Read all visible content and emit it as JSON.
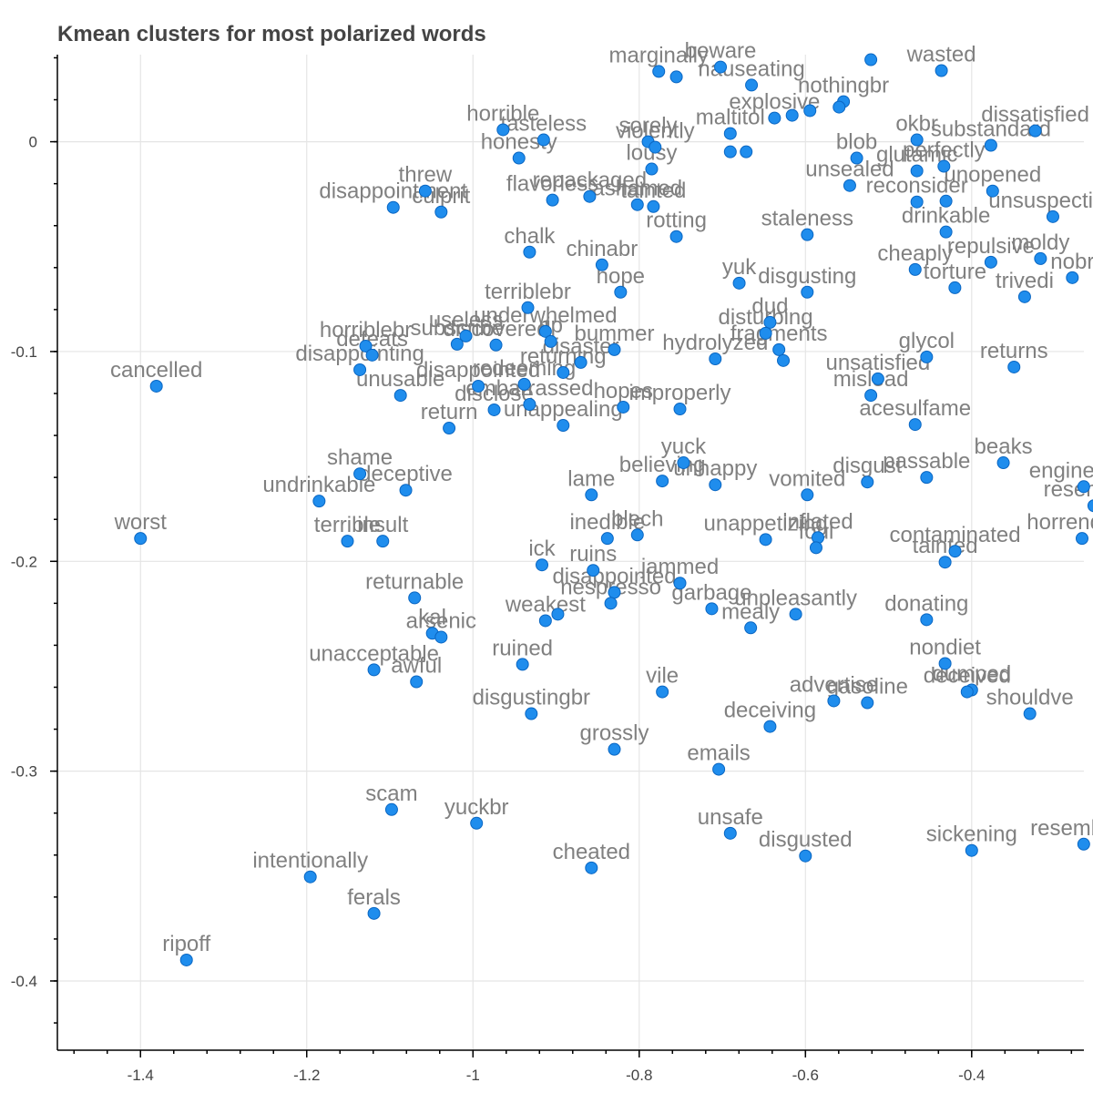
{
  "chart_data": {
    "type": "scatter",
    "title": "Kmean clusters for most polarized words",
    "xlabel": "",
    "ylabel": "",
    "xlim": [
      -1.5,
      -0.265
    ],
    "ylim": [
      -0.433,
      0.0415
    ],
    "grid": true,
    "x_ticks": [
      -1.4,
      -1.2,
      -1,
      -0.8,
      -0.6,
      -0.4
    ],
    "x_tick_labels": [
      "-1.4",
      "-1.2",
      "-1",
      "-0.8",
      "-0.6",
      "-0.4"
    ],
    "y_ticks": [
      0,
      -0.1,
      -0.2,
      -0.3,
      -0.4
    ],
    "y_tick_labels": [
      "0",
      "-0.1",
      "-0.2",
      "-0.3",
      "-0.4"
    ],
    "point_color": "#1f8ded",
    "points": [
      {
        "label": "marginally",
        "x": -0.7765,
        "y": 0.0335
      },
      {
        "label": "",
        "x": -0.7553,
        "y": 0.0309
      },
      {
        "label": "beware",
        "x": -0.7022,
        "y": 0.0356
      },
      {
        "label": "wasted",
        "x": -0.4364,
        "y": 0.0339
      },
      {
        "label": "",
        "x": -0.5213,
        "y": 0.0391
      },
      {
        "label": "nothingbr",
        "x": -0.5542,
        "y": 0.0191
      },
      {
        "label": "nauseating",
        "x": -0.6649,
        "y": 0.027
      },
      {
        "label": "",
        "x": -0.5595,
        "y": 0.0165
      },
      {
        "label": "explosive",
        "x": -0.6372,
        "y": 0.0113
      },
      {
        "label": "",
        "x": -0.616,
        "y": 0.0126
      },
      {
        "label": "",
        "x": -0.5946,
        "y": 0.0148
      },
      {
        "label": "horrible",
        "x": -0.9638,
        "y": 0.0057
      },
      {
        "label": "tasteless",
        "x": -0.915,
        "y": 0.0009
      },
      {
        "label": "honesty",
        "x": -0.9447,
        "y": -0.0078
      },
      {
        "label": "sorely",
        "x": -0.7893,
        "y": -0.0
      },
      {
        "label": "violently",
        "x": -0.7808,
        "y": -0.0026
      },
      {
        "label": "maltitol",
        "x": -0.6904,
        "y": 0.0039
      },
      {
        "label": "",
        "x": -0.6904,
        "y": -0.0048
      },
      {
        "label": "",
        "x": -0.6713,
        "y": -0.0048
      },
      {
        "label": "lousy",
        "x": -0.785,
        "y": -0.013
      },
      {
        "label": "okbr",
        "x": -0.4659,
        "y": 0.0009
      },
      {
        "label": "substandard",
        "x": -0.3769,
        "y": -0.0017
      },
      {
        "label": "dissatisfied",
        "x": -0.3235,
        "y": 0.0052
      },
      {
        "label": "blob",
        "x": -0.5383,
        "y": -0.0078
      },
      {
        "label": "glutamic",
        "x": -0.4659,
        "y": -0.0139
      },
      {
        "label": "perfectly",
        "x": -0.4334,
        "y": -0.0117
      },
      {
        "label": "unsealed",
        "x": -0.5467,
        "y": -0.0209
      },
      {
        "label": "reconsider",
        "x": -0.4659,
        "y": -0.0287
      },
      {
        "label": "",
        "x": -0.4309,
        "y": -0.0283
      },
      {
        "label": "unopened",
        "x": -0.3748,
        "y": -0.0235
      },
      {
        "label": "unsuspecting",
        "x": -0.3023,
        "y": -0.0357
      },
      {
        "label": "threw",
        "x": -1.0574,
        "y": -0.0235
      },
      {
        "label": "disappointment",
        "x": -1.0959,
        "y": -0.0313
      },
      {
        "label": "culprit",
        "x": -1.0383,
        "y": -0.0335
      },
      {
        "label": "flavorless",
        "x": -0.9043,
        "y": -0.0278
      },
      {
        "label": "repackaged",
        "x": -0.8596,
        "y": -0.0261
      },
      {
        "label": "ashamed",
        "x": -0.8022,
        "y": -0.03
      },
      {
        "label": "tainted",
        "x": -0.7829,
        "y": -0.0309
      },
      {
        "label": "rotting",
        "x": -0.7553,
        "y": -0.0452
      },
      {
        "label": "drinkable",
        "x": -0.4309,
        "y": -0.043
      },
      {
        "label": "staleness",
        "x": -0.5978,
        "y": -0.0443
      },
      {
        "label": "chalk",
        "x": -0.9319,
        "y": -0.0526
      },
      {
        "label": "chinabr",
        "x": -0.8448,
        "y": -0.0587
      },
      {
        "label": "hope",
        "x": -0.8224,
        "y": -0.0717
      },
      {
        "label": "repulsive",
        "x": -0.3769,
        "y": -0.0574
      },
      {
        "label": "moldy",
        "x": -0.3172,
        "y": -0.0557
      },
      {
        "label": "cheaply",
        "x": -0.468,
        "y": -0.0609
      },
      {
        "label": "nobr",
        "x": -0.2789,
        "y": -0.0648
      },
      {
        "label": "torture",
        "x": -0.4202,
        "y": -0.0696
      },
      {
        "label": "trivedi",
        "x": -0.3363,
        "y": -0.0739
      },
      {
        "label": "yuk",
        "x": -0.6797,
        "y": -0.0674
      },
      {
        "label": "disgusting",
        "x": -0.5978,
        "y": -0.0717
      },
      {
        "label": "terriblebr",
        "x": -0.934,
        "y": -0.0791
      },
      {
        "label": "underwhelmed",
        "x": -0.9128,
        "y": -0.0904
      },
      {
        "label": "useless",
        "x": -1.0085,
        "y": -0.0926
      },
      {
        "label": "subscribe",
        "x": -1.0191,
        "y": -0.0965
      },
      {
        "label": "discovered",
        "x": -0.9723,
        "y": -0.0969
      },
      {
        "label": "bummer",
        "x": -0.8299,
        "y": -0.0991
      },
      {
        "label": "rip",
        "x": -0.9064,
        "y": -0.0952
      },
      {
        "label": "dud",
        "x": -0.6426,
        "y": -0.0861
      },
      {
        "label": "disturbing",
        "x": -0.6479,
        "y": -0.0913
      },
      {
        "label": "fragments",
        "x": -0.6319,
        "y": -0.0991
      },
      {
        "label": "hydrolyzed",
        "x": -0.7085,
        "y": -0.1035
      },
      {
        "label": "",
        "x": -0.6266,
        "y": -0.1043
      },
      {
        "label": "horriblebr",
        "x": -1.129,
        "y": -0.0974
      },
      {
        "label": "defeats",
        "x": -1.1213,
        "y": -0.1017
      },
      {
        "label": "disappointing",
        "x": -1.1361,
        "y": -0.1087
      },
      {
        "label": "unusable",
        "x": -1.0872,
        "y": -0.1209
      },
      {
        "label": "disappointed",
        "x": -0.9936,
        "y": -0.1165
      },
      {
        "label": "redeeming",
        "x": -0.9383,
        "y": -0.1156
      },
      {
        "label": "disaster",
        "x": -0.8703,
        "y": -0.1052
      },
      {
        "label": "returning",
        "x": -0.8915,
        "y": -0.11
      },
      {
        "label": "embarrassed",
        "x": -0.9319,
        "y": -0.1252
      },
      {
        "label": "return",
        "x": -1.0287,
        "y": -0.1365
      },
      {
        "label": "disclose",
        "x": -0.9745,
        "y": -0.1278
      },
      {
        "label": "unappealing",
        "x": -0.8915,
        "y": -0.1352
      },
      {
        "label": "hopes",
        "x": -0.8192,
        "y": -0.1265
      },
      {
        "label": "improperly",
        "x": -0.751,
        "y": -0.1274
      },
      {
        "label": "glycol",
        "x": -0.4542,
        "y": -0.1026
      },
      {
        "label": "unsatisfied",
        "x": -0.5128,
        "y": -0.113
      },
      {
        "label": "mislead",
        "x": -0.5213,
        "y": -0.1209
      },
      {
        "label": "returns",
        "x": -0.3491,
        "y": -0.1074
      },
      {
        "label": "acesulfame",
        "x": -0.468,
        "y": -0.1348
      },
      {
        "label": "cancelled",
        "x": -1.3809,
        "y": -0.1165
      },
      {
        "label": "yuck",
        "x": -0.7467,
        "y": -0.153
      },
      {
        "label": "believing",
        "x": -0.7722,
        "y": -0.1617
      },
      {
        "label": "unhappy",
        "x": -0.7085,
        "y": -0.1635
      },
      {
        "label": "disgust",
        "x": -0.5255,
        "y": -0.1622
      },
      {
        "label": "passable",
        "x": -0.4542,
        "y": -0.16
      },
      {
        "label": "beaks",
        "x": -0.3619,
        "y": -0.153
      },
      {
        "label": "shame",
        "x": -1.1361,
        "y": -0.1583
      },
      {
        "label": "deceptive",
        "x": -1.0808,
        "y": -0.1661
      },
      {
        "label": "undrinkable",
        "x": -1.1851,
        "y": -0.1713
      },
      {
        "label": "lame",
        "x": -0.8575,
        "y": -0.1683
      },
      {
        "label": "vomited",
        "x": -0.5978,
        "y": -0.1683
      },
      {
        "label": "engineered",
        "x": -0.2652,
        "y": -0.1644
      },
      {
        "label": "resembles",
        "x": -0.253,
        "y": -0.1735
      },
      {
        "label": "worst",
        "x": -1.4,
        "y": -0.1891
      },
      {
        "label": "terrible",
        "x": -1.151,
        "y": -0.1904
      },
      {
        "label": "insult",
        "x": -1.1085,
        "y": -0.1904
      },
      {
        "label": "inedible",
        "x": -0.8383,
        "y": -0.1891
      },
      {
        "label": "blech",
        "x": -0.8022,
        "y": -0.1874
      },
      {
        "label": "unappetizing",
        "x": -0.6479,
        "y": -0.1896
      },
      {
        "label": "inflated",
        "x": -0.585,
        "y": -0.1887
      },
      {
        "label": "foul",
        "x": -0.5872,
        "y": -0.1935
      },
      {
        "label": "contaminated",
        "x": -0.42,
        "y": -0.1952
      },
      {
        "label": "tainted",
        "x": -0.432,
        "y": -0.2004
      },
      {
        "label": "horrendous",
        "x": -0.2672,
        "y": -0.1891
      },
      {
        "label": "ick",
        "x": -0.917,
        "y": -0.2017
      },
      {
        "label": "ruins",
        "x": -0.8554,
        "y": -0.2043
      },
      {
        "label": "jammed",
        "x": -0.751,
        "y": -0.2104
      },
      {
        "label": "returnable",
        "x": -1.0702,
        "y": -0.2174
      },
      {
        "label": "disappointed",
        "x": -0.8299,
        "y": -0.2148
      },
      {
        "label": "nespresso",
        "x": -0.8342,
        "y": -0.22
      },
      {
        "label": "weakest",
        "x": -0.9128,
        "y": -0.2283
      },
      {
        "label": "",
        "x": -0.8979,
        "y": -0.2252
      },
      {
        "label": "garbage",
        "x": -0.7127,
        "y": -0.2226
      },
      {
        "label": "unpleasantly",
        "x": -0.6117,
        "y": -0.2252
      },
      {
        "label": "mealy",
        "x": -0.6659,
        "y": -0.2317
      },
      {
        "label": "donating",
        "x": -0.4542,
        "y": -0.2278
      },
      {
        "label": "kal",
        "x": -1.0489,
        "y": -0.2343
      },
      {
        "label": "arsenic",
        "x": -1.0383,
        "y": -0.2361
      },
      {
        "label": "unacceptable",
        "x": -1.1191,
        "y": -0.2517
      },
      {
        "label": "awful",
        "x": -1.068,
        "y": -0.2574
      },
      {
        "label": "ruined",
        "x": -0.9404,
        "y": -0.2491
      },
      {
        "label": "nondiet",
        "x": -0.432,
        "y": -0.2487
      },
      {
        "label": "dumped",
        "x": -0.4,
        "y": -0.2613
      },
      {
        "label": "deceived",
        "x": -0.4055,
        "y": -0.2622
      },
      {
        "label": "vile",
        "x": -0.7722,
        "y": -0.2622
      },
      {
        "label": "disgustingbr",
        "x": -0.9298,
        "y": -0.2726
      },
      {
        "label": "advertise",
        "x": -0.5659,
        "y": -0.2665
      },
      {
        "label": "gasoline",
        "x": -0.5255,
        "y": -0.2674
      },
      {
        "label": "shouldve",
        "x": -0.33,
        "y": -0.2726
      },
      {
        "label": "deceiving",
        "x": -0.6426,
        "y": -0.2787
      },
      {
        "label": "grossly",
        "x": -0.8299,
        "y": -0.2896
      },
      {
        "label": "emails",
        "x": -0.7043,
        "y": -0.2991
      },
      {
        "label": "scam",
        "x": -1.0979,
        "y": -0.3183
      },
      {
        "label": "yuckbr",
        "x": -0.9957,
        "y": -0.3248
      },
      {
        "label": "unsafe",
        "x": -0.6904,
        "y": -0.3296
      },
      {
        "label": "disgusted",
        "x": -0.6,
        "y": -0.3404
      },
      {
        "label": "sickening",
        "x": -0.4,
        "y": -0.3378
      },
      {
        "label": "resembling",
        "x": -0.2652,
        "y": -0.3348
      },
      {
        "label": "cheated",
        "x": -0.8575,
        "y": -0.3461
      },
      {
        "label": "intentionally",
        "x": -1.1957,
        "y": -0.3504
      },
      {
        "label": "ferals",
        "x": -1.1191,
        "y": -0.3678
      },
      {
        "label": "ripoff",
        "x": -1.3447,
        "y": -0.39
      }
    ]
  }
}
